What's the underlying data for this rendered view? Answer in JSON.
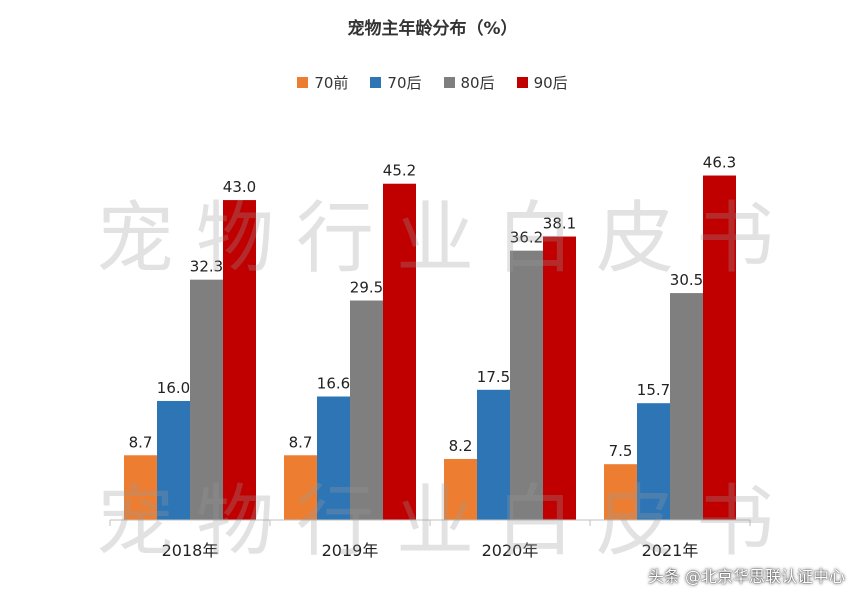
{
  "chart_data": {
    "type": "bar",
    "title": "宠物主年龄分布（%）",
    "categories": [
      "2018年",
      "2019年",
      "2020年",
      "2021年"
    ],
    "series": [
      {
        "name": "70前",
        "color": "#ED7D31",
        "values": [
          8.7,
          8.7,
          8.2,
          7.5
        ]
      },
      {
        "name": "70后",
        "color": "#2E75B6",
        "values": [
          16.0,
          16.6,
          17.5,
          15.7
        ]
      },
      {
        "name": "80后",
        "color": "#7F7F7F",
        "values": [
          32.3,
          29.5,
          36.2,
          30.5
        ]
      },
      {
        "name": "90后",
        "color": "#C00000",
        "values": [
          43.0,
          45.2,
          38.1,
          46.3
        ]
      }
    ],
    "ylim": [
      0,
      50
    ],
    "grid": false,
    "legend_position": "top"
  },
  "watermark": "宠物行业白皮书",
  "footer_credit": "头条 @北京华思联认证中心"
}
